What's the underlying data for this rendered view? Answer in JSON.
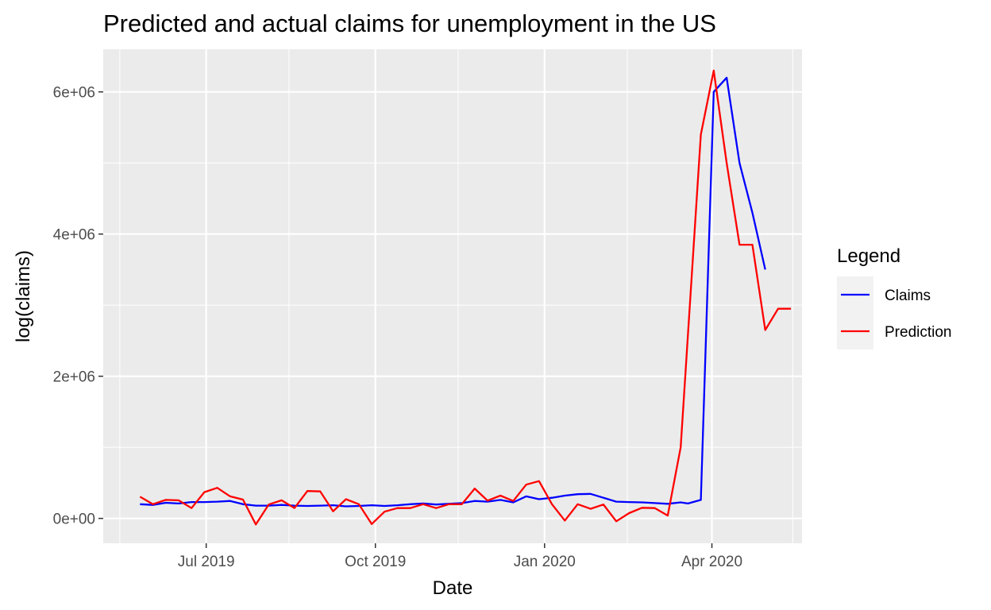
{
  "chart_data": {
    "type": "line",
    "title": "Predicted and actual claims for unemployment in the US",
    "xlabel": "Date",
    "ylabel": "log(claims)",
    "x_type": "date",
    "xlim": [
      "2019-05-06",
      "2020-05-20"
    ],
    "ylim": [
      -350000,
      6600000
    ],
    "x_ticks": [
      {
        "date": "2019-07-01",
        "label": "Jul 2019"
      },
      {
        "date": "2019-10-01",
        "label": "Oct 2019"
      },
      {
        "date": "2020-01-01",
        "label": "Jan 2020"
      },
      {
        "date": "2020-04-01",
        "label": "Apr 2020"
      }
    ],
    "x_minor_ticks": [
      "2019-05-15",
      "2019-08-15",
      "2019-11-15",
      "2020-02-15",
      "2020-05-15"
    ],
    "y_ticks": [
      {
        "value": 0,
        "label": "0e+00"
      },
      {
        "value": 2000000,
        "label": "2e+06"
      },
      {
        "value": 4000000,
        "label": "4e+06"
      },
      {
        "value": 6000000,
        "label": "6e+06"
      }
    ],
    "y_minor_ticks": [
      1000000,
      3000000,
      5000000
    ],
    "grid": true,
    "legend": {
      "title": "Legend",
      "position": "right",
      "entries": [
        {
          "label": "Claims",
          "color": "#0000FF"
        },
        {
          "label": "Prediction",
          "color": "#FF0000"
        }
      ]
    },
    "series": [
      {
        "name": "Claims",
        "color": "#0000FF",
        "points": [
          [
            "2019-05-26",
            200000
          ],
          [
            "2019-06-02",
            190000
          ],
          [
            "2019-06-09",
            220000
          ],
          [
            "2019-06-16",
            210000
          ],
          [
            "2019-06-23",
            230000
          ],
          [
            "2019-06-30",
            230000
          ],
          [
            "2019-07-07",
            235000
          ],
          [
            "2019-07-14",
            245000
          ],
          [
            "2019-07-21",
            200000
          ],
          [
            "2019-07-28",
            180000
          ],
          [
            "2019-08-04",
            180000
          ],
          [
            "2019-08-11",
            190000
          ],
          [
            "2019-08-18",
            180000
          ],
          [
            "2019-08-25",
            175000
          ],
          [
            "2019-09-01",
            180000
          ],
          [
            "2019-09-08",
            185000
          ],
          [
            "2019-09-15",
            170000
          ],
          [
            "2019-09-22",
            175000
          ],
          [
            "2019-09-29",
            185000
          ],
          [
            "2019-10-06",
            175000
          ],
          [
            "2019-10-13",
            185000
          ],
          [
            "2019-10-20",
            200000
          ],
          [
            "2019-10-27",
            210000
          ],
          [
            "2019-11-03",
            195000
          ],
          [
            "2019-11-10",
            205000
          ],
          [
            "2019-11-17",
            215000
          ],
          [
            "2019-11-24",
            245000
          ],
          [
            "2019-12-01",
            235000
          ],
          [
            "2019-12-08",
            260000
          ],
          [
            "2019-12-15",
            225000
          ],
          [
            "2019-12-22",
            310000
          ],
          [
            "2019-12-29",
            270000
          ],
          [
            "2020-01-05",
            290000
          ],
          [
            "2020-01-12",
            320000
          ],
          [
            "2020-01-19",
            340000
          ],
          [
            "2020-01-26",
            345000
          ],
          [
            "2020-02-02",
            290000
          ],
          [
            "2020-02-09",
            235000
          ],
          [
            "2020-02-16",
            230000
          ],
          [
            "2020-02-23",
            225000
          ],
          [
            "2020-03-01",
            215000
          ],
          [
            "2020-03-08",
            205000
          ],
          [
            "2020-03-15",
            225000
          ],
          [
            "2020-03-19",
            210000
          ],
          [
            "2020-03-26",
            260000
          ],
          [
            "2020-04-02",
            6000000
          ],
          [
            "2020-04-09",
            6200000
          ],
          [
            "2020-04-16",
            5000000
          ],
          [
            "2020-04-23",
            4300000
          ],
          [
            "2020-04-30",
            3500000
          ]
        ]
      },
      {
        "name": "Prediction",
        "color": "#FF0000",
        "points": [
          [
            "2019-05-26",
            305000
          ],
          [
            "2019-06-02",
            200000
          ],
          [
            "2019-06-09",
            260000
          ],
          [
            "2019-06-16",
            255000
          ],
          [
            "2019-06-23",
            145000
          ],
          [
            "2019-06-30",
            370000
          ],
          [
            "2019-07-07",
            430000
          ],
          [
            "2019-07-14",
            310000
          ],
          [
            "2019-07-21",
            265000
          ],
          [
            "2019-07-28",
            -85000
          ],
          [
            "2019-08-04",
            195000
          ],
          [
            "2019-08-11",
            255000
          ],
          [
            "2019-08-18",
            145000
          ],
          [
            "2019-08-25",
            385000
          ],
          [
            "2019-09-01",
            380000
          ],
          [
            "2019-09-08",
            100000
          ],
          [
            "2019-09-15",
            270000
          ],
          [
            "2019-09-22",
            200000
          ],
          [
            "2019-09-29",
            -80000
          ],
          [
            "2019-10-06",
            95000
          ],
          [
            "2019-10-13",
            145000
          ],
          [
            "2019-10-20",
            145000
          ],
          [
            "2019-10-27",
            200000
          ],
          [
            "2019-11-03",
            145000
          ],
          [
            "2019-11-10",
            200000
          ],
          [
            "2019-11-17",
            200000
          ],
          [
            "2019-11-24",
            420000
          ],
          [
            "2019-12-01",
            250000
          ],
          [
            "2019-12-08",
            320000
          ],
          [
            "2019-12-15",
            245000
          ],
          [
            "2019-12-22",
            475000
          ],
          [
            "2019-12-29",
            525000
          ],
          [
            "2020-01-05",
            200000
          ],
          [
            "2020-01-12",
            -30000
          ],
          [
            "2020-01-19",
            200000
          ],
          [
            "2020-01-26",
            135000
          ],
          [
            "2020-02-02",
            195000
          ],
          [
            "2020-02-09",
            -40000
          ],
          [
            "2020-02-16",
            75000
          ],
          [
            "2020-02-23",
            150000
          ],
          [
            "2020-03-01",
            145000
          ],
          [
            "2020-03-08",
            40000
          ],
          [
            "2020-03-15",
            1000000
          ],
          [
            "2020-03-26",
            5400000
          ],
          [
            "2020-04-02",
            6300000
          ],
          [
            "2020-04-09",
            5000000
          ],
          [
            "2020-04-16",
            3850000
          ],
          [
            "2020-04-23",
            3850000
          ],
          [
            "2020-04-30",
            2650000
          ],
          [
            "2020-05-07",
            2950000
          ],
          [
            "2020-05-14",
            2950000
          ]
        ]
      }
    ]
  }
}
